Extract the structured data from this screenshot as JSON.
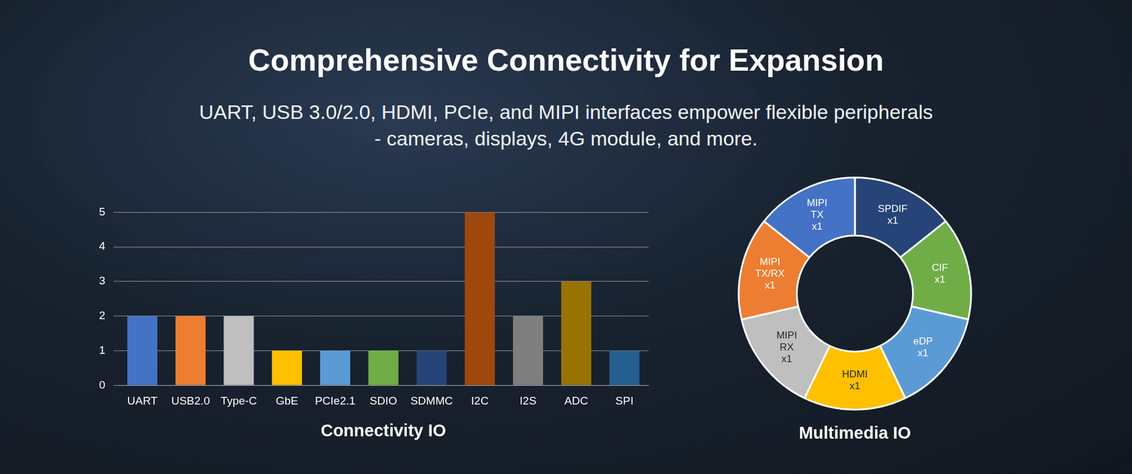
{
  "header": {
    "title": "Comprehensive Connectivity for Expansion",
    "subtitle": "UART, USB 3.0/2.0, HDMI, PCIe, and MIPI interfaces empower flexible peripherals - cameras, displays, 4G module, and more."
  },
  "chart_data": [
    {
      "type": "bar",
      "title": "Connectivity IO",
      "categories": [
        "UART",
        "USB2.0",
        "Type-C",
        "GbE",
        "PCIe2.1",
        "SDIO",
        "SDMMC",
        "I2C",
        "I2S",
        "ADC",
        "SPI"
      ],
      "values": [
        2,
        2,
        2,
        1,
        1,
        1,
        1,
        5,
        2,
        3,
        1
      ],
      "colors": [
        "#4472c4",
        "#ed7d31",
        "#bfbfbf",
        "#ffc000",
        "#5b9bd5",
        "#70ad47",
        "#264478",
        "#9e480e",
        "#7f7f7f",
        "#997300",
        "#255e91"
      ],
      "ylim": [
        0,
        5
      ],
      "yticks": [
        0,
        1,
        2,
        3,
        4,
        5
      ],
      "grid": true
    },
    {
      "type": "doughnut",
      "title": "Multimedia IO",
      "categories": [
        "SPDIF",
        "CIF",
        "eDP",
        "HDMI",
        "MIPI RX",
        "MIPI TX/RX",
        "MIPI TX"
      ],
      "values": [
        1,
        1,
        1,
        1,
        1,
        1,
        1
      ],
      "value_labels": [
        "x1",
        "x1",
        "x1",
        "x1",
        "x1",
        "x1",
        "x1"
      ],
      "colors": [
        "#264478",
        "#70ad47",
        "#5b9bd5",
        "#ffc000",
        "#bfbfbf",
        "#ed7d31",
        "#4472c4"
      ],
      "data_labels": true
    }
  ]
}
